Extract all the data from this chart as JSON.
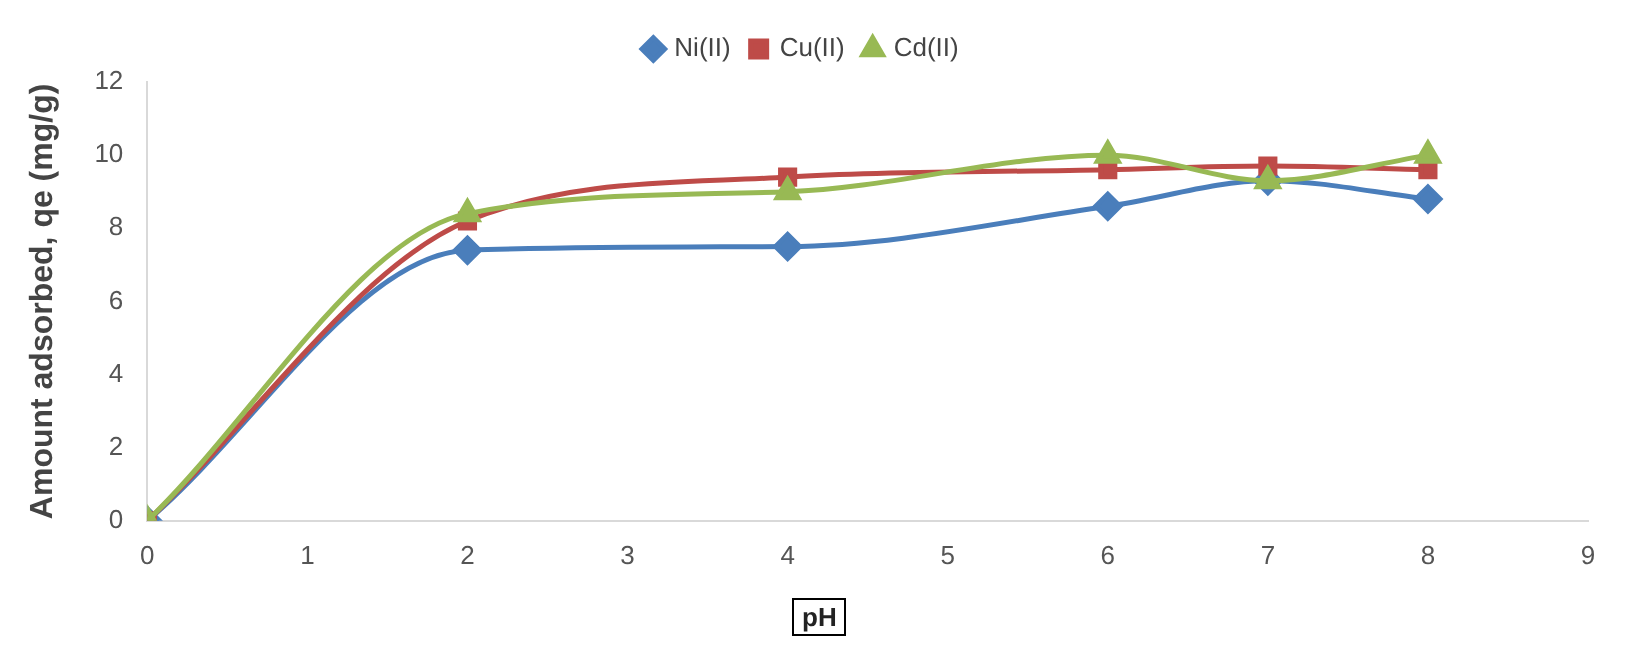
{
  "chart_data": {
    "type": "line",
    "xlabel": "pH",
    "ylabel": "Amount adsorbed, qe (mg/g)",
    "x": [
      0,
      2,
      4,
      6,
      7,
      8
    ],
    "series": [
      {
        "name": "Ni(II)",
        "color": "#4a7ebb",
        "values": [
          0,
          7.4,
          7.5,
          8.6,
          9.3,
          8.8
        ],
        "marker": "diamond"
      },
      {
        "name": "Cu(II)",
        "color": "#be4b48",
        "values": [
          0,
          8.2,
          9.4,
          9.6,
          9.7,
          9.6
        ],
        "marker": "square"
      },
      {
        "name": "Cd(II)",
        "color": "#98b954",
        "values": [
          0,
          8.4,
          9.0,
          10.0,
          9.3,
          10.0
        ],
        "marker": "triangle"
      }
    ],
    "xlim": [
      0,
      9
    ],
    "xticks": [
      0,
      1,
      2,
      3,
      4,
      5,
      6,
      7,
      8,
      9
    ],
    "ylim": [
      0,
      12
    ],
    "yticks": [
      0,
      2,
      4,
      6,
      8,
      10,
      12
    ],
    "grid": false,
    "legend": "top"
  }
}
